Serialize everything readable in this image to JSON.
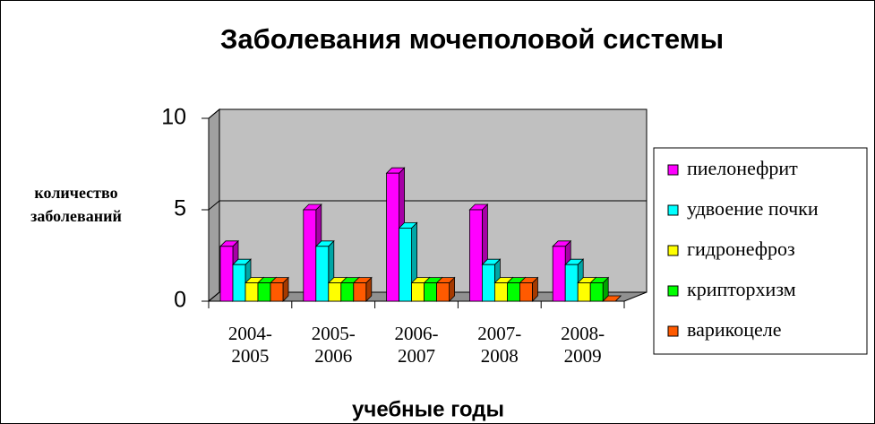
{
  "chart_data": {
    "type": "bar",
    "title": "Заболевания мочеполовой системы",
    "x_label": "учебные годы",
    "y_label": "количество заболеваний",
    "categories": [
      "2004-2005",
      "2005-2006",
      "2006-2007",
      "2007-2008",
      "2008-2009"
    ],
    "series": [
      {
        "name": "пиелонефрит",
        "color": "#ff00ff",
        "values": [
          3,
          5,
          7,
          5,
          3
        ]
      },
      {
        "name": "удвоение почки",
        "color": "#00ffff",
        "values": [
          2,
          3,
          4,
          2,
          2
        ]
      },
      {
        "name": "гидронефроз",
        "color": "#ffff00",
        "values": [
          1,
          1,
          1,
          1,
          1
        ]
      },
      {
        "name": "крипторхизм",
        "color": "#00ff00",
        "values": [
          1,
          1,
          1,
          1,
          1
        ]
      },
      {
        "name": "варикоцеле",
        "color": "#ff5a00",
        "values": [
          1,
          1,
          1,
          1,
          0
        ]
      }
    ],
    "ylim": [
      0,
      10
    ],
    "yticks": [
      0,
      5,
      10
    ],
    "grid": true,
    "legend": "right"
  }
}
